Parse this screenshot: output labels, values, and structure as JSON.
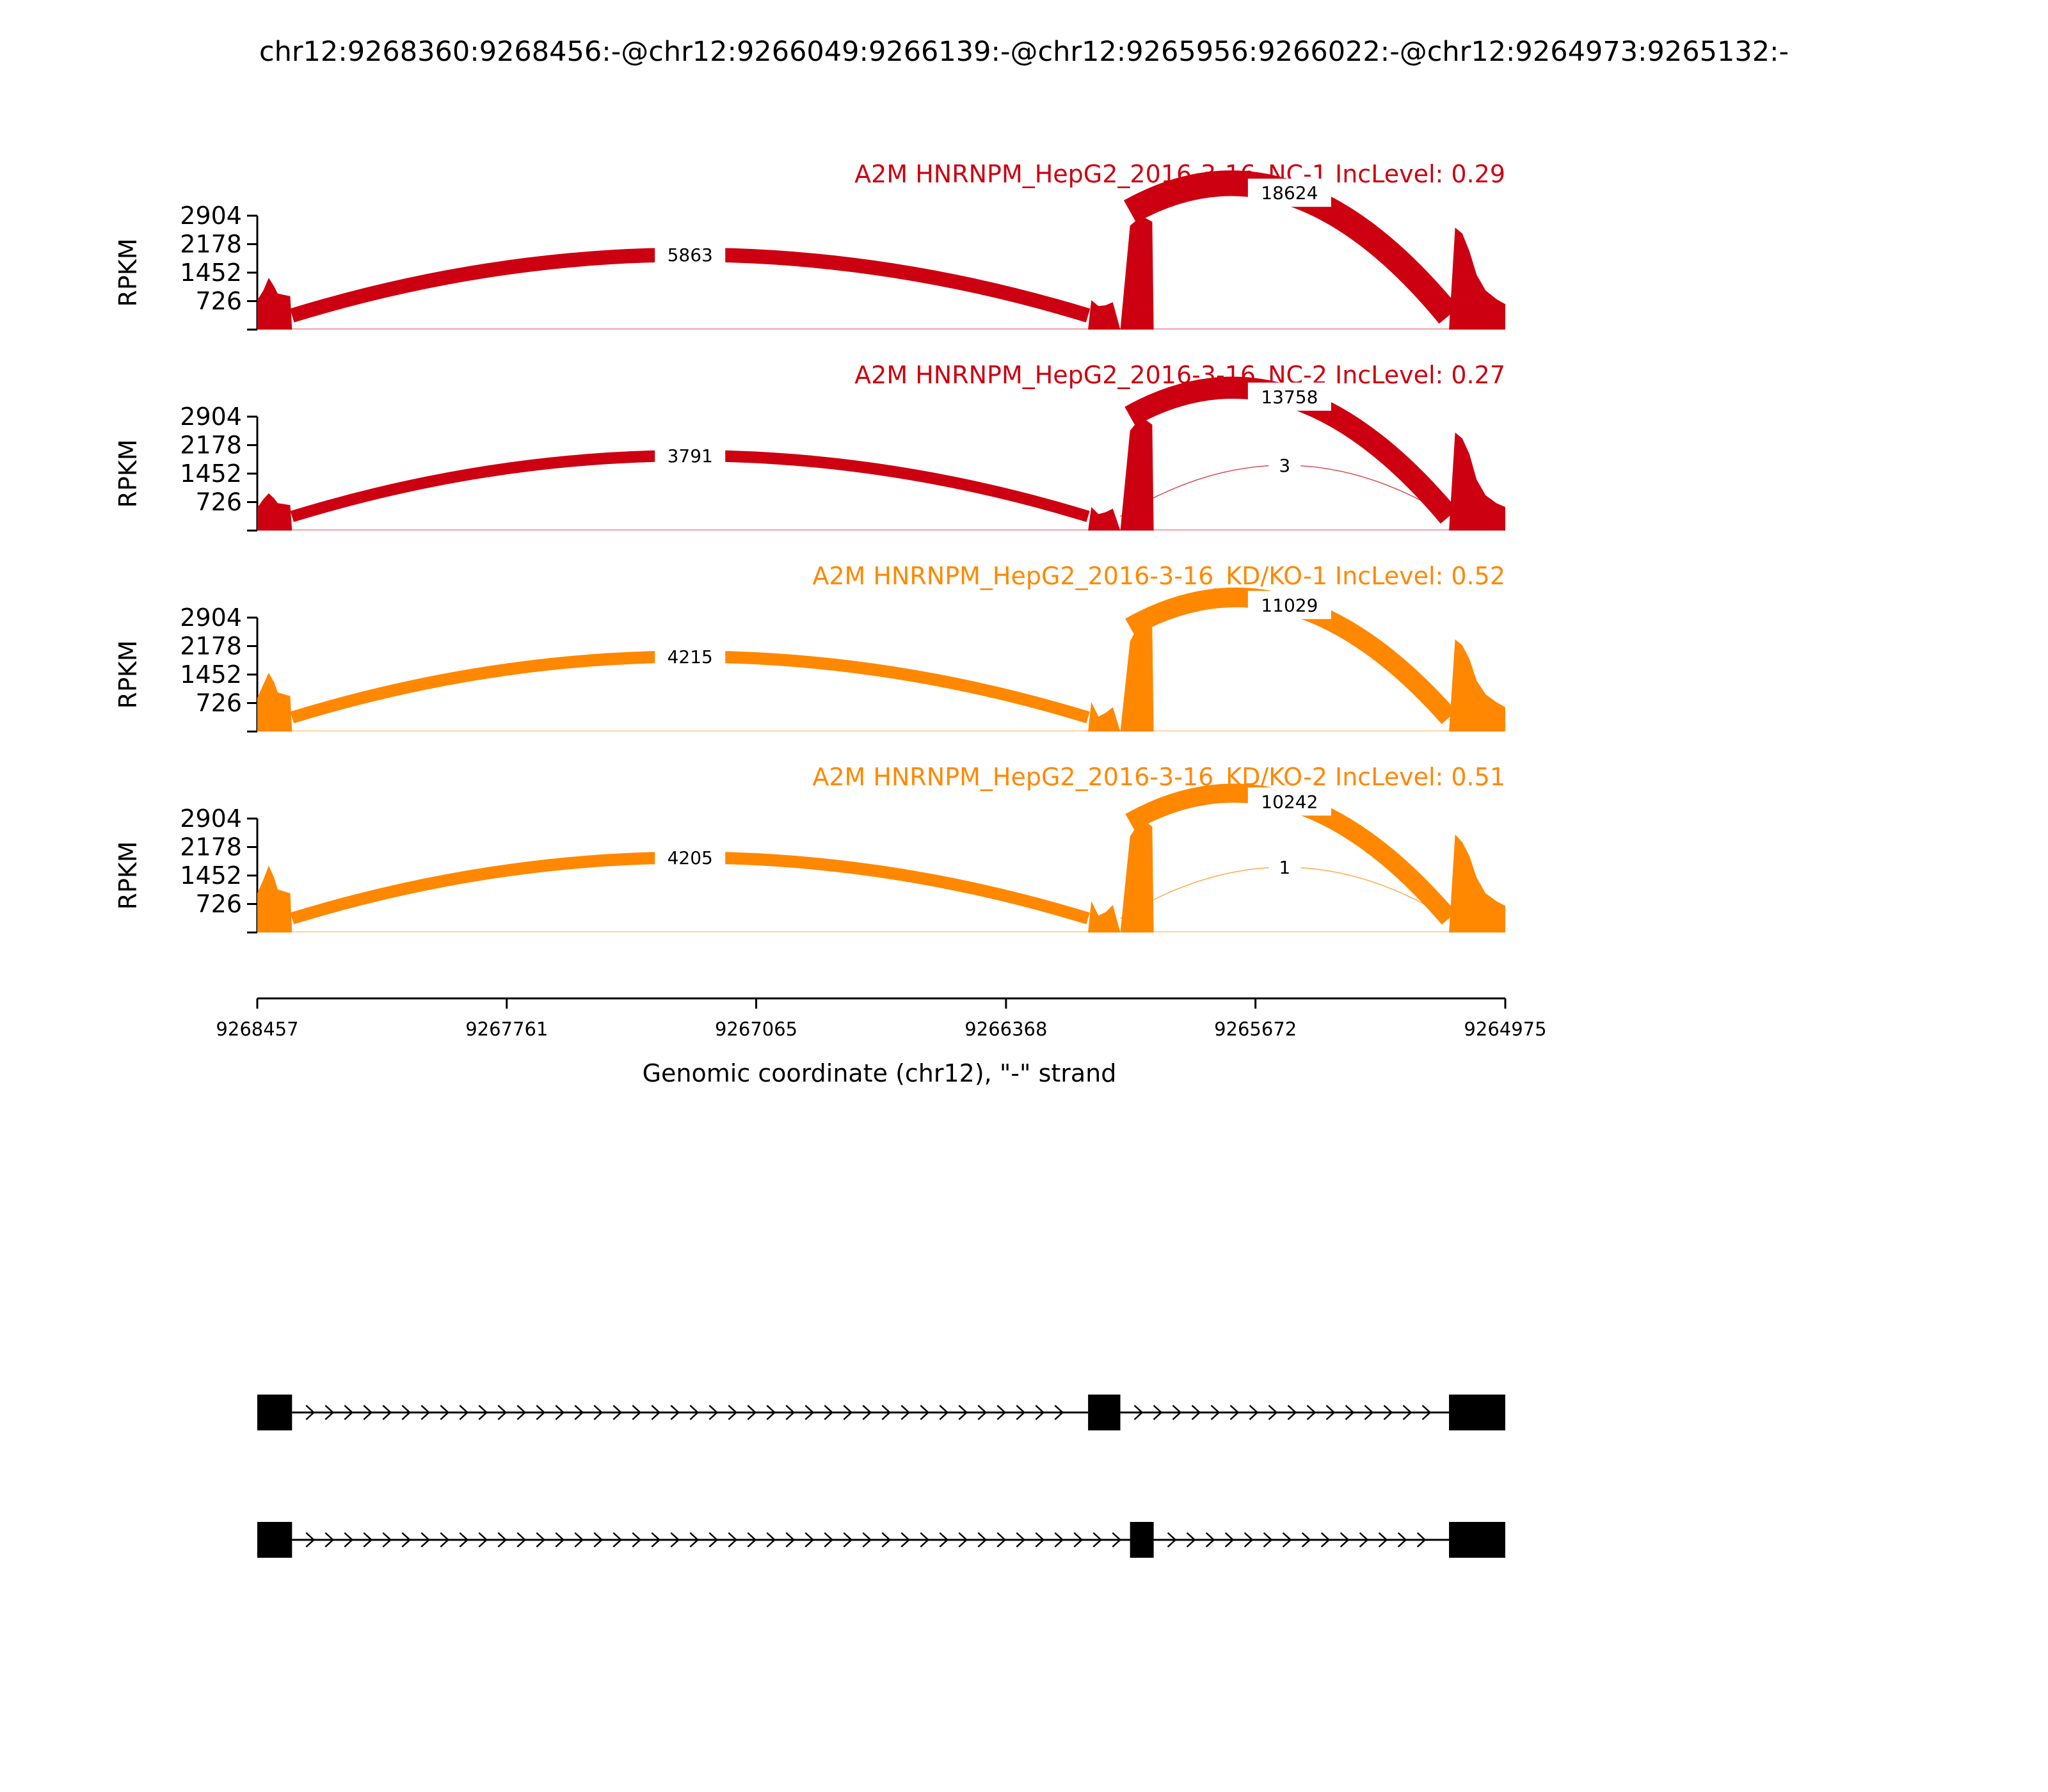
{
  "chart_data": {
    "type": "area",
    "title": "chr12:9268360:9268456:-@chr12:9266049:9266139:-@chr12:9265956:9266022:-@chr12:9264973:9265132:-",
    "xlabel": "Genomic coordinate (chr12), \"-\" strand",
    "ylabel": "RPKM",
    "xlim": [
      9268457,
      9264975
    ],
    "x_reversed": true,
    "x_ticks": [
      {
        "value": 9268457,
        "label": "9268457"
      },
      {
        "value": 9267761,
        "label": "9267761"
      },
      {
        "value": 9267065,
        "label": "9267065"
      },
      {
        "value": 9266368,
        "label": "9266368"
      },
      {
        "value": 9265672,
        "label": "9265672"
      },
      {
        "value": 9264975,
        "label": "9264975"
      }
    ],
    "ylim": [
      0,
      2904
    ],
    "y_ticks": [
      {
        "value": 726,
        "label": "726"
      },
      {
        "value": 1452,
        "label": "1452"
      },
      {
        "value": 2178,
        "label": "2178"
      },
      {
        "value": 2904,
        "label": "2904"
      }
    ],
    "panels": [
      {
        "name": "A2M HNRNPM_HepG2_2016-3-16_NC-1 IncLevel: 0.29",
        "color": "#cc0011",
        "coverage": {
          "x": [
            9268457,
            9268440,
            9268425,
            9268410,
            9268400,
            9268365,
            9268360,
            9266139,
            9266130,
            9266110,
            9266090,
            9266070,
            9266049,
            9266022,
            9265990,
            9265960,
            9265956,
            9265132,
            9265115,
            9265095,
            9265075,
            9265055,
            9265030,
            9265000,
            9264975
          ],
          "y": [
            750,
            1000,
            1320,
            1100,
            920,
            850,
            0,
            0,
            750,
            600,
            620,
            700,
            0,
            2650,
            2900,
            2750,
            0,
            0,
            2600,
            2450,
            2000,
            1400,
            1000,
            780,
            650
          ]
        },
        "junctions": [
          {
            "start": 9268360,
            "end": 9266139,
            "count": 5863,
            "label": "5863"
          },
          {
            "start": 9266022,
            "end": 9265132,
            "count": 18624,
            "label": "18624"
          }
        ]
      },
      {
        "name": "A2M HNRNPM_HepG2_2016-3-16_NC-2 IncLevel: 0.27",
        "color": "#cc0011",
        "coverage": {
          "x": [
            9268457,
            9268440,
            9268425,
            9268410,
            9268400,
            9268365,
            9268360,
            9266139,
            9266130,
            9266110,
            9266090,
            9266070,
            9266049,
            9266022,
            9265990,
            9265960,
            9265956,
            9265132,
            9265115,
            9265095,
            9265075,
            9265055,
            9265030,
            9265000,
            9264975
          ],
          "y": [
            580,
            800,
            950,
            820,
            700,
            650,
            0,
            0,
            600,
            420,
            470,
            560,
            0,
            2550,
            2900,
            2700,
            0,
            0,
            2500,
            2350,
            1950,
            1300,
            900,
            700,
            600
          ]
        },
        "junctions": [
          {
            "start": 9268360,
            "end": 9266139,
            "count": 3791,
            "label": "3791"
          },
          {
            "start": 9266022,
            "end": 9265132,
            "count": 13758,
            "label": "13758"
          },
          {
            "start": 9266049,
            "end": 9265132,
            "count": 3,
            "label": "3"
          }
        ]
      },
      {
        "name": "A2M HNRNPM_HepG2_2016-3-16_KD/KO-1 IncLevel: 0.52",
        "color": "#ff8800",
        "coverage": {
          "x": [
            9268457,
            9268440,
            9268425,
            9268410,
            9268400,
            9268365,
            9268360,
            9266139,
            9266130,
            9266110,
            9266090,
            9266070,
            9266049,
            9266022,
            9265990,
            9265960,
            9265956,
            9265132,
            9265115,
            9265095,
            9265075,
            9265055,
            9265030,
            9265000,
            9264975
          ],
          "y": [
            850,
            1200,
            1500,
            1250,
            1000,
            900,
            0,
            0,
            750,
            380,
            480,
            620,
            0,
            2300,
            2850,
            2650,
            0,
            0,
            2350,
            2200,
            1850,
            1300,
            950,
            750,
            620
          ]
        },
        "junctions": [
          {
            "start": 9268360,
            "end": 9266139,
            "count": 4215,
            "label": "4215"
          },
          {
            "start": 9266022,
            "end": 9265132,
            "count": 11029,
            "label": "11029"
          }
        ]
      },
      {
        "name": "A2M HNRNPM_HepG2_2016-3-16_KD/KO-2 IncLevel: 0.51",
        "color": "#ff8800",
        "coverage": {
          "x": [
            9268457,
            9268440,
            9268425,
            9268410,
            9268400,
            9268365,
            9268360,
            9266139,
            9266130,
            9266110,
            9266090,
            9266070,
            9266049,
            9266022,
            9265990,
            9265960,
            9265956,
            9265132,
            9265115,
            9265095,
            9265075,
            9265055,
            9265030,
            9265000,
            9264975
          ],
          "y": [
            1000,
            1350,
            1700,
            1400,
            1100,
            1000,
            0,
            0,
            800,
            430,
            520,
            700,
            0,
            2450,
            2900,
            2700,
            0,
            0,
            2500,
            2300,
            1950,
            1400,
            1000,
            800,
            680
          ]
        },
        "junctions": [
          {
            "start": 9268360,
            "end": 9266139,
            "count": 4205,
            "label": "4205"
          },
          {
            "start": 9266022,
            "end": 9265132,
            "count": 10242,
            "label": "10242"
          },
          {
            "start": 9266049,
            "end": 9265132,
            "count": 1,
            "label": "1"
          }
        ]
      }
    ],
    "transcripts": [
      {
        "exons": [
          [
            9268457,
            9268360
          ],
          [
            9266139,
            9266049
          ],
          [
            9265132,
            9264975
          ]
        ]
      },
      {
        "exons": [
          [
            9268457,
            9268360
          ],
          [
            9266022,
            9265956
          ],
          [
            9265132,
            9264975
          ]
        ]
      }
    ]
  }
}
